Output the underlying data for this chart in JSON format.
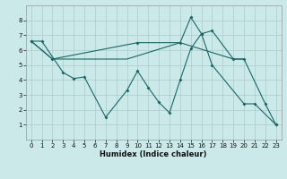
{
  "background_color": "#cce9e9",
  "grid_color": "#aacccc",
  "line_color": "#1a6666",
  "xlabel": "Humidex (Indice chaleur)",
  "xlim": [
    -0.5,
    23.5
  ],
  "ylim": [
    0,
    9
  ],
  "xticks": [
    0,
    1,
    2,
    3,
    4,
    5,
    6,
    7,
    8,
    9,
    10,
    11,
    12,
    13,
    14,
    15,
    16,
    17,
    18,
    19,
    20,
    21,
    22,
    23
  ],
  "yticks": [
    1,
    2,
    3,
    4,
    5,
    6,
    7,
    8
  ],
  "line1_x": [
    0,
    1,
    3,
    4,
    5,
    7,
    9,
    10,
    11,
    12,
    13,
    14,
    15,
    16,
    17,
    20,
    21,
    23
  ],
  "line1_y": [
    6.6,
    6.6,
    4.5,
    4.1,
    4.2,
    1.5,
    3.3,
    4.6,
    3.5,
    2.5,
    1.8,
    4.0,
    6.1,
    7.1,
    5.0,
    2.4,
    2.4,
    1.0
  ],
  "line2_x": [
    0,
    2,
    10,
    14,
    15,
    16,
    17,
    19,
    20,
    22,
    23
  ],
  "line2_y": [
    6.6,
    5.4,
    6.5,
    6.5,
    8.2,
    7.1,
    7.3,
    5.4,
    5.4,
    2.4,
    1.0
  ],
  "line3_x": [
    0,
    2,
    9,
    14,
    19,
    20
  ],
  "line3_y": [
    6.6,
    5.4,
    5.4,
    6.5,
    5.4,
    5.4
  ],
  "xlabel_fontsize": 6.0,
  "tick_fontsize": 5.0
}
